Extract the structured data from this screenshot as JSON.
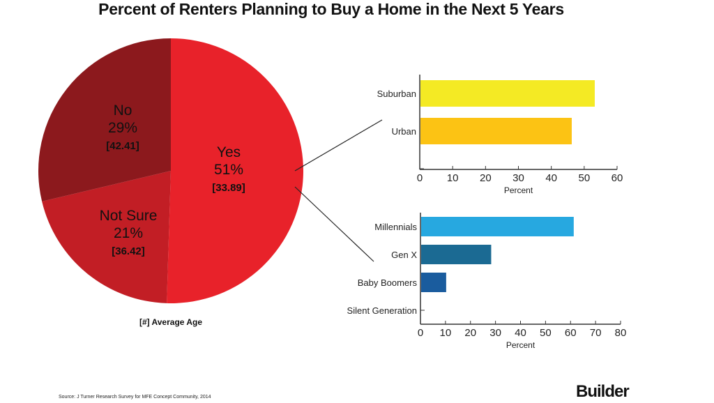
{
  "chart_data": [
    {
      "type": "pie",
      "title": "Percent of Renters Planning to Buy a Home in the Next 5 Years",
      "slices": [
        {
          "label": "Yes",
          "value": 51,
          "pct_label": "51%",
          "avg_age": "[33.89]",
          "color": "#e8222a"
        },
        {
          "label": "Not Sure",
          "value": 21,
          "pct_label": "21%",
          "avg_age": "[36.42]",
          "color": "#c21e25"
        },
        {
          "label": "No",
          "value": 29,
          "pct_label": "29%",
          "avg_age": "[42.41]",
          "color": "#8c191d"
        }
      ],
      "legend_note": "[#] Average Age"
    },
    {
      "type": "bar",
      "orientation": "horizontal",
      "categories": [
        "Suburban",
        "Urban",
        ""
      ],
      "values": [
        53,
        46,
        0
      ],
      "colors": [
        "#f4ea24",
        "#fcc314",
        "#ffffff"
      ],
      "xlabel": "Percent",
      "xlim": [
        0,
        60
      ],
      "xticks": [
        "0",
        "10",
        "20",
        "30",
        "40",
        "50",
        "60"
      ]
    },
    {
      "type": "bar",
      "orientation": "horizontal",
      "categories": [
        "Millennials",
        "Gen X",
        "Baby Boomers",
        "Silent Generation"
      ],
      "values": [
        61,
        28,
        10,
        0
      ],
      "colors": [
        "#27a8e0",
        "#1b6a93",
        "#1a5c9e",
        "#1a5c9e"
      ],
      "xlabel": "Percent",
      "xlim": [
        0,
        80
      ],
      "xticks": [
        "0",
        "10",
        "20",
        "30",
        "40",
        "50",
        "60",
        "70",
        "80"
      ]
    }
  ],
  "source": "Source: J Turner Research Survey for MFE Concept Community, 2014",
  "brand": "Builder"
}
